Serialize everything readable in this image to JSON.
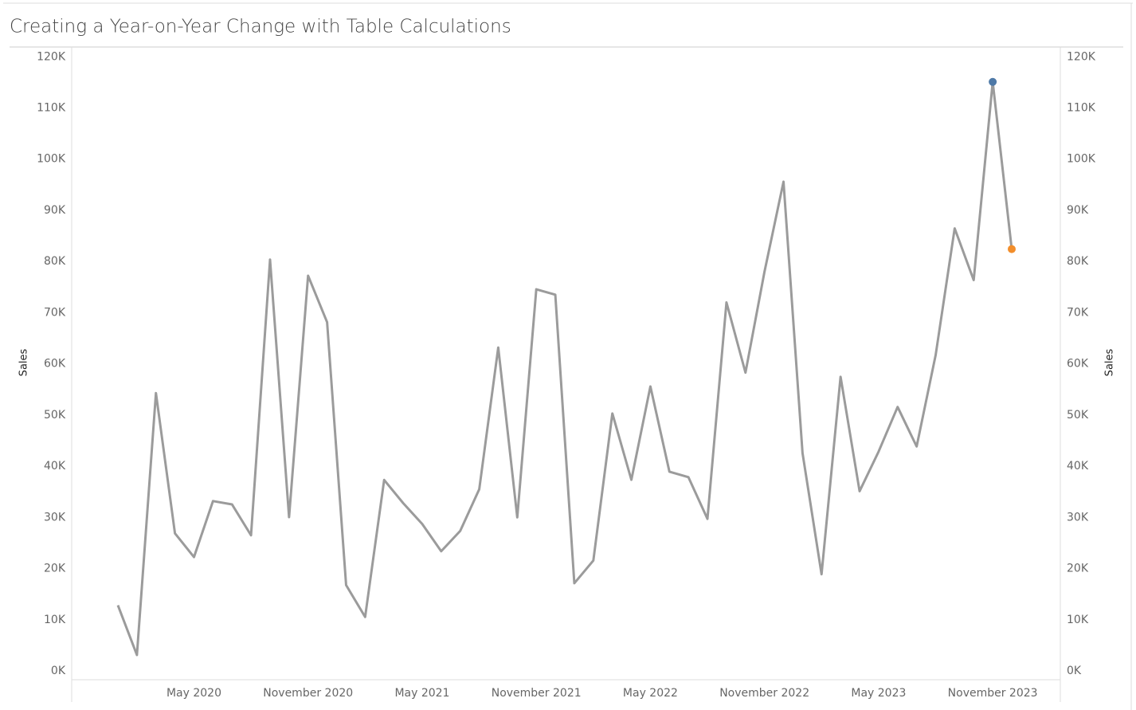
{
  "chart_data": {
    "type": "line",
    "title": "Creating a Year-on-Year Change with Table Calculations",
    "y_label": "Sales",
    "y2_label": "Sales",
    "x": [
      "2020-01",
      "2020-02",
      "2020-03",
      "2020-04",
      "2020-05",
      "2020-06",
      "2020-07",
      "2020-08",
      "2020-09",
      "2020-10",
      "2020-11",
      "2020-12",
      "2021-01",
      "2021-02",
      "2021-03",
      "2021-04",
      "2021-05",
      "2021-06",
      "2021-07",
      "2021-08",
      "2021-09",
      "2021-10",
      "2021-11",
      "2021-12",
      "2022-01",
      "2022-02",
      "2022-03",
      "2022-04",
      "2022-05",
      "2022-06",
      "2022-07",
      "2022-08",
      "2022-09",
      "2022-10",
      "2022-11",
      "2022-12",
      "2023-01",
      "2023-02",
      "2023-03",
      "2023-04",
      "2023-05",
      "2023-06",
      "2023-07",
      "2023-08",
      "2023-09",
      "2023-10",
      "2023-11",
      "2023-12"
    ],
    "series": [
      {
        "name": "Sales",
        "color": "#9b9b9b",
        "values": [
          14237,
          4520,
          55691,
          28295,
          23648,
          34595,
          33946,
          27909,
          81777,
          31453,
          78629,
          69546,
          18174,
          11951,
          38726,
          34195,
          30132,
          24797,
          28765,
          36898,
          64596,
          31405,
          75973,
          74920,
          18542,
          22979,
          51716,
          38750,
          56988,
          40344,
          39262,
          31115,
          73410,
          59688,
          79412,
          96999,
          43971,
          20301,
          58872,
          36522,
          44261,
          52982,
          45264,
          63121,
          87867,
          77777,
          116500,
          83829
        ]
      }
    ],
    "highlights": [
      {
        "index": 46,
        "color": "#4e79a7"
      },
      {
        "index": 47,
        "color": "#f28e2b"
      }
    ],
    "xticks": [
      {
        "value": "2020-05",
        "label": "May 2020"
      },
      {
        "value": "2020-11",
        "label": "November 2020"
      },
      {
        "value": "2021-05",
        "label": "May 2021"
      },
      {
        "value": "2021-11",
        "label": "November 2021"
      },
      {
        "value": "2022-05",
        "label": "May 2022"
      },
      {
        "value": "2022-11",
        "label": "November 2022"
      },
      {
        "value": "2023-05",
        "label": "May 2023"
      },
      {
        "value": "2023-11",
        "label": "November 2023"
      }
    ],
    "ylim": [
      0,
      123000
    ],
    "yticks": [
      {
        "value": 0,
        "label": "0K"
      },
      {
        "value": 10000,
        "label": "10K"
      },
      {
        "value": 20000,
        "label": "20K"
      },
      {
        "value": 30000,
        "label": "30K"
      },
      {
        "value": 40000,
        "label": "40K"
      },
      {
        "value": 50000,
        "label": "50K"
      },
      {
        "value": 60000,
        "label": "60K"
      },
      {
        "value": 70000,
        "label": "70K"
      },
      {
        "value": 80000,
        "label": "80K"
      },
      {
        "value": 90000,
        "label": "90K"
      },
      {
        "value": 100000,
        "label": "100K"
      },
      {
        "value": 110000,
        "label": "110K"
      },
      {
        "value": 120000,
        "label": "120K"
      }
    ]
  }
}
